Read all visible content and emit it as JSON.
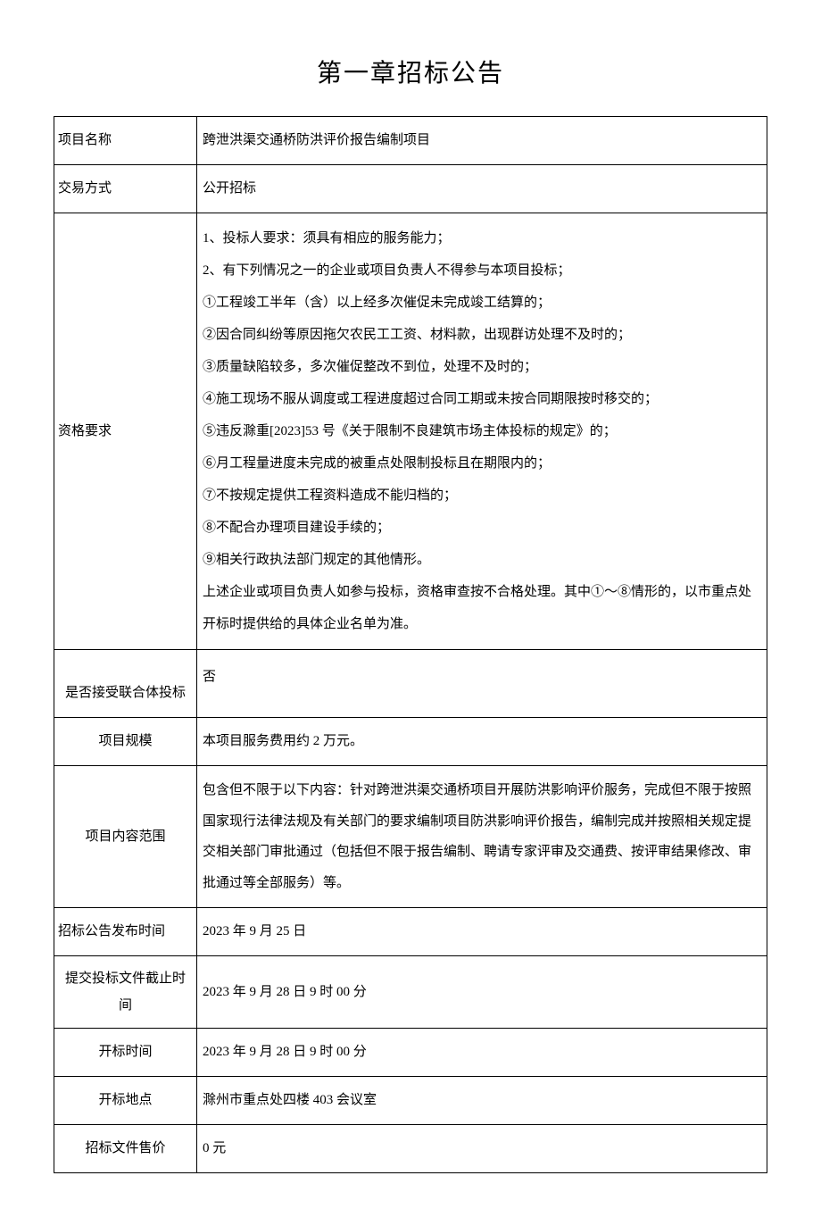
{
  "title": "第一章招标公告",
  "rows": {
    "project_name": {
      "label": "项目名称",
      "value": "跨泄洪渠交通桥防洪评价报告编制项目"
    },
    "transaction_method": {
      "label": "交易方式",
      "value": "公开招标"
    },
    "qualification": {
      "label": "资格要求",
      "lines": [
        "1、投标人要求：须具有相应的服务能力；",
        "2、有下列情况之一的企业或项目负责人不得参与本项目投标；",
        "①工程竣工半年（含）以上经多次催促未完成竣工结算的；",
        "②因合同纠纷等原因拖欠农民工工资、材料款，出现群访处理不及时的；",
        "③质量缺陷较多，多次催促整改不到位，处理不及时的；",
        "④施工现场不服从调度或工程进度超过合同工期或未按合同期限按时移交的；",
        "⑤违反滁重[2023]53 号《关于限制不良建筑市场主体投标的规定》的；",
        "⑥月工程量进度未完成的被重点处限制投标且在期限内的；",
        "⑦不按规定提供工程资料造成不能归档的；",
        "⑧不配合办理项目建设手续的；",
        "⑨相关行政执法部门规定的其他情形。",
        "上述企业或项目负责人如参与投标，资格审查按不合格处理。其中①～⑧情形的，以市重点处开标时提供给的具体企业名单为准。"
      ]
    },
    "consortium": {
      "label": "是否接受联合体投标",
      "value": "否"
    },
    "project_scale": {
      "label": "项目规模",
      "value": "本项目服务费用约 2 万元。"
    },
    "project_scope": {
      "label": "项目内容范围",
      "value": "包含但不限于以下内容：针对跨泄洪渠交通桥项目开展防洪影响评价服务，完成但不限于按照国家现行法律法规及有关部门的要求编制项目防洪影响评价报告，编制完成并按照相关规定提交相关部门审批通过（包括但不限于报告编制、聘请专家评审及交通费、按评审结果修改、审批通过等全部服务）等。"
    },
    "announcement_time": {
      "label": "招标公告发布时间",
      "value": "2023 年 9 月 25 日"
    },
    "submission_deadline": {
      "label": "提交投标文件截止时间",
      "value": "2023 年 9 月 28 日 9 时 00 分"
    },
    "opening_time": {
      "label": "开标时间",
      "value": "2023 年 9 月 28 日 9 时 00 分"
    },
    "opening_location": {
      "label": "开标地点",
      "value": "滁州市重点处四楼 403 会议室"
    },
    "document_price": {
      "label": "招标文件售价",
      "value": "0 元"
    }
  }
}
